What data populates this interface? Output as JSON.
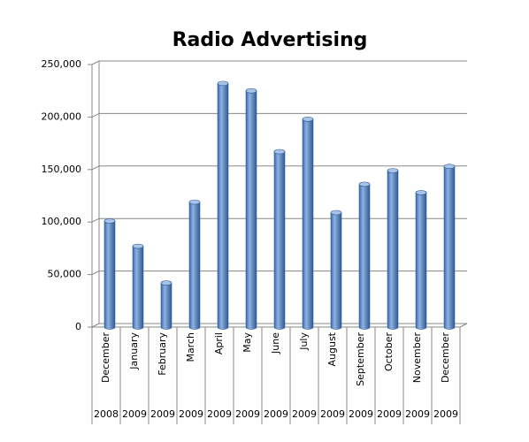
{
  "chart_data": {
    "type": "bar",
    "title": "Radio Advertising",
    "categories": [
      "December",
      "January",
      "February",
      "March",
      "April",
      "May",
      "June",
      "July",
      "August",
      "September",
      "October",
      "November",
      "December"
    ],
    "years": [
      "2008",
      "2009",
      "2009",
      "2009",
      "2009",
      "2009",
      "2009",
      "2009",
      "2009",
      "2009",
      "2009",
      "2009",
      "2009"
    ],
    "values": [
      101000,
      77000,
      42000,
      119000,
      232000,
      225000,
      167000,
      198000,
      109000,
      136000,
      149000,
      128000,
      153000
    ],
    "color": "#4f81bd",
    "ylim": [
      0,
      250000
    ],
    "yticks": [
      0,
      {
        "value": 50000,
        "label": "50,000"
      },
      {
        "value": 100000,
        "label": "100,000"
      },
      {
        "value": 150000,
        "label": "150,000"
      },
      {
        "value": 200000,
        "label": "200,000"
      },
      {
        "value": 250000,
        "label": "250,000"
      }
    ],
    "grid": true
  }
}
